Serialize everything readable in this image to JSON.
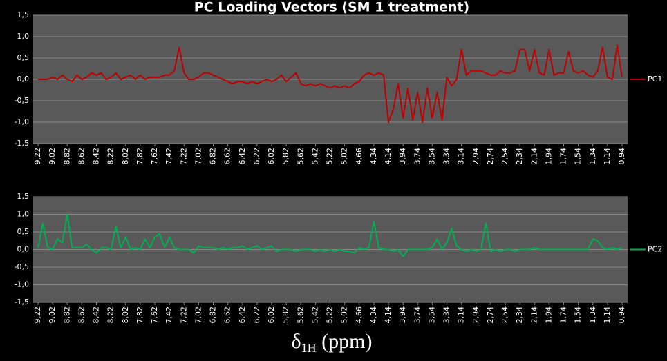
{
  "chart_data": [
    {
      "type": "line",
      "title": "PC Loading Vectors   (SM 1 treatment)",
      "categories": [
        "9,22",
        null,
        null,
        "9,02",
        null,
        null,
        "8,82",
        null,
        null,
        "8,62",
        null,
        null,
        "8,42",
        null,
        null,
        "8,22",
        null,
        null,
        "8,02",
        null,
        null,
        "7,82",
        null,
        null,
        "7,62",
        null,
        null,
        "7,42",
        null,
        null,
        "7,22",
        null,
        null,
        "7,02",
        null,
        null,
        "6,82",
        null,
        null,
        "6,62",
        null,
        null,
        "6,42",
        null,
        null,
        "6,22",
        null,
        null,
        "6,02",
        null,
        null,
        "5,82",
        null,
        null,
        "5,62",
        null,
        null,
        "5,42",
        null,
        null,
        "5,22",
        null,
        null,
        "5,02",
        null,
        null,
        "4,66",
        null,
        null,
        "4,34",
        null,
        null,
        "4,14",
        null,
        null,
        "3,94",
        null,
        null,
        "3,74",
        null,
        null,
        "3,54",
        null,
        null,
        "3,34",
        null,
        null,
        "3,14",
        null,
        null,
        "2,94",
        null,
        null,
        "2,74",
        null,
        null,
        "2,54",
        null,
        null,
        "2,34",
        null,
        null,
        "2,14",
        null,
        null,
        "1,94",
        null,
        null,
        "1,74",
        null,
        null,
        "1,54",
        null,
        null,
        "1,34",
        null,
        null,
        "1,14",
        null,
        null,
        "0,94"
      ],
      "series": [
        {
          "name": "PC1",
          "color": "#c00000",
          "values": [
            0,
            0,
            0,
            0.05,
            0,
            0.1,
            0,
            -0.05,
            0.1,
            0,
            0.05,
            0.15,
            0.1,
            0.15,
            0,
            0.05,
            0.15,
            0,
            0.05,
            0.1,
            0,
            0.1,
            0,
            0.05,
            0.05,
            0.05,
            0.1,
            0.1,
            0.2,
            0.75,
            0.15,
            0,
            0,
            0.05,
            0.15,
            0.15,
            0.1,
            0.05,
            0,
            -0.05,
            -0.1,
            -0.05,
            -0.05,
            -0.1,
            -0.05,
            -0.1,
            -0.05,
            0,
            -0.05,
            0,
            0.1,
            -0.05,
            0.05,
            0.15,
            -0.1,
            -0.15,
            -0.1,
            -0.15,
            -0.1,
            -0.15,
            -0.2,
            -0.15,
            -0.2,
            -0.15,
            -0.2,
            -0.1,
            -0.05,
            0.1,
            0.15,
            0.1,
            0.15,
            0.1,
            -1.0,
            -0.7,
            -0.1,
            -0.9,
            -0.2,
            -0.95,
            -0.3,
            -1.0,
            -0.2,
            -0.9,
            -0.3,
            -0.95,
            0.05,
            -0.15,
            0,
            0.7,
            0.1,
            0.2,
            0.2,
            0.2,
            0.15,
            0.1,
            0.1,
            0.2,
            0.15,
            0.15,
            0.2,
            0.7,
            0.7,
            0.2,
            0.7,
            0.15,
            0.1,
            0.7,
            0.1,
            0.15,
            0.15,
            0.65,
            0.2,
            0.15,
            0.2,
            0.1,
            0.05,
            0.2,
            0.75,
            0.05,
            0,
            0.8,
            0.05
          ]
        }
      ],
      "ylim": [
        -1.5,
        1.5
      ],
      "yticks": [
        {
          "value": 1.5,
          "label": "1,5"
        },
        {
          "value": 1.0,
          "label": "1,0"
        },
        {
          "value": 0.5,
          "label": "0,5"
        },
        {
          "value": 0.0,
          "label": "0,0"
        },
        {
          "value": -0.5,
          "label": "-0,5"
        },
        {
          "value": -1.0,
          "label": "-1,0"
        },
        {
          "value": -1.5,
          "label": "-1,5"
        }
      ],
      "grid": true,
      "legend": "right"
    },
    {
      "type": "line",
      "categories": [
        "9,22",
        null,
        null,
        "9,02",
        null,
        null,
        "8,82",
        null,
        null,
        "8,62",
        null,
        null,
        "8,42",
        null,
        null,
        "8,22",
        null,
        null,
        "8,02",
        null,
        null,
        "7,82",
        null,
        null,
        "7,62",
        null,
        null,
        "7,42",
        null,
        null,
        "7,22",
        null,
        null,
        "7,02",
        null,
        null,
        "6,82",
        null,
        null,
        "6,62",
        null,
        null,
        "6,42",
        null,
        null,
        "6,22",
        null,
        null,
        "6,02",
        null,
        null,
        "5,82",
        null,
        null,
        "5,62",
        null,
        null,
        "5,42",
        null,
        null,
        "5,22",
        null,
        null,
        "5,02",
        null,
        null,
        "4,66",
        null,
        null,
        "4,34",
        null,
        null,
        "4,14",
        null,
        null,
        "3,94",
        null,
        null,
        "3,74",
        null,
        null,
        "3,54",
        null,
        null,
        "3,34",
        null,
        null,
        "3,14",
        null,
        null,
        "2,94",
        null,
        null,
        "2,74",
        null,
        null,
        "2,54",
        null,
        null,
        "2,34",
        null,
        null,
        "2,14",
        null,
        null,
        "1,94",
        null,
        null,
        "1,74",
        null,
        null,
        "1,54",
        null,
        null,
        "1,34",
        null,
        null,
        "1,14",
        null,
        null,
        "0,94"
      ],
      "series": [
        {
          "name": "PC2",
          "color": "#00b050",
          "values": [
            0.05,
            0.75,
            0.05,
            0,
            0.3,
            0.2,
            1.0,
            0.05,
            0.05,
            0.05,
            0.15,
            0,
            -0.1,
            0.05,
            0.05,
            0,
            0.65,
            0.05,
            0.35,
            0,
            0.05,
            0,
            0.3,
            0.05,
            0.35,
            0.45,
            0.05,
            0.35,
            0.05,
            0,
            0,
            0,
            -0.1,
            0.1,
            0.05,
            0.05,
            0.05,
            0,
            0.05,
            0,
            0.05,
            0.05,
            0.1,
            0,
            0.05,
            0.1,
            0,
            0.05,
            0.1,
            -0.05,
            0,
            0,
            0,
            -0.05,
            0,
            0,
            0,
            -0.05,
            0,
            -0.05,
            0,
            -0.05,
            0,
            -0.05,
            -0.05,
            -0.1,
            0.05,
            0,
            0.05,
            0.8,
            0.05,
            0,
            0,
            -0.05,
            0,
            -0.2,
            0,
            0,
            0,
            0,
            0,
            0.05,
            0.3,
            0,
            0.2,
            0.6,
            0.1,
            0,
            -0.05,
            0,
            -0.05,
            0,
            0.75,
            -0.05,
            0,
            -0.05,
            0,
            0,
            -0.05,
            0,
            0,
            0,
            0.05,
            0,
            0,
            0,
            0,
            0,
            0,
            0,
            0,
            0,
            0,
            0,
            0.3,
            0.25,
            0.05,
            0,
            0.05,
            0,
            0.05
          ]
        }
      ],
      "ylim": [
        -1.5,
        1.5
      ],
      "yticks": [
        {
          "value": 1.5,
          "label": "1,5"
        },
        {
          "value": 1.0,
          "label": "1,0"
        },
        {
          "value": 0.5,
          "label": "0,5"
        },
        {
          "value": 0.0,
          "label": "0,0"
        },
        {
          "value": -0.5,
          "label": "-0,5"
        },
        {
          "value": -1.0,
          "label": "-1,0"
        },
        {
          "value": -1.5,
          "label": "-1,5"
        }
      ],
      "grid": true,
      "legend": "right",
      "x_label": {
        "symbol": "δ",
        "subscript": "1H",
        "unit": " (ppm)"
      }
    }
  ]
}
